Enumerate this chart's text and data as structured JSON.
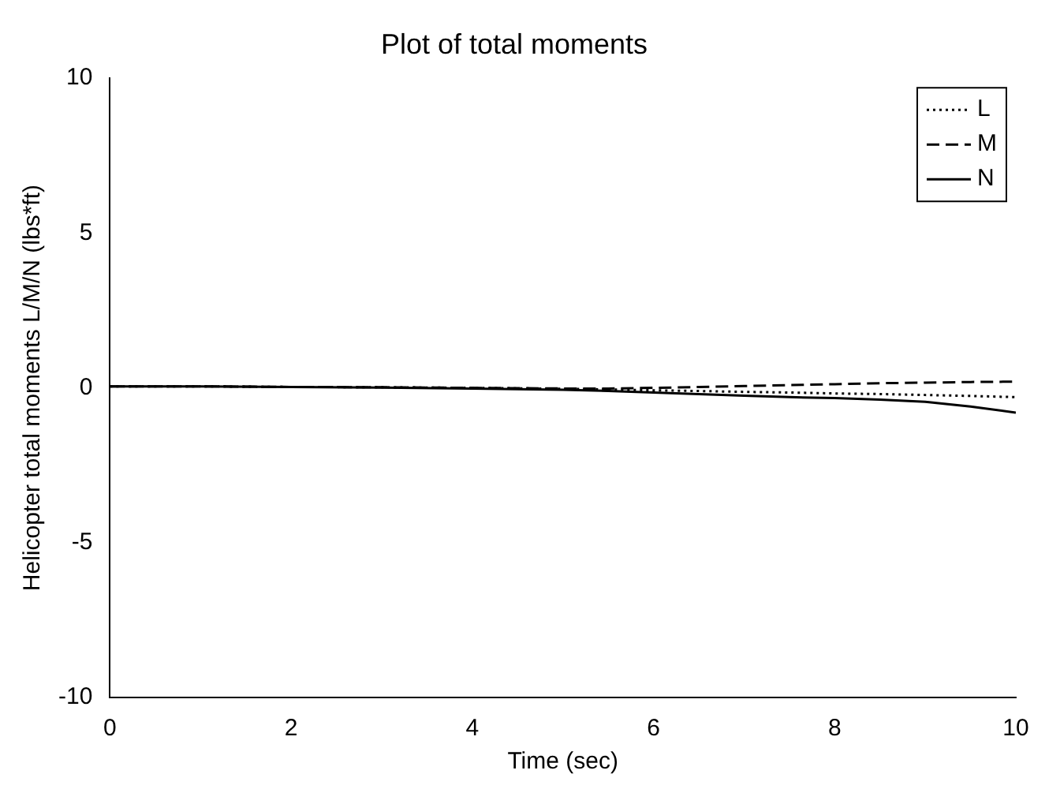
{
  "chart_data": {
    "type": "line",
    "title": "Plot of total moments",
    "xlabel": "Time (sec)",
    "ylabel": "Helicopter total moments L/M/N (lbs*ft)",
    "x": [
      0,
      1,
      2,
      3,
      4,
      5,
      5.5,
      6,
      6.5,
      7,
      7.5,
      8,
      8.5,
      9,
      9.5,
      10
    ],
    "xlim": [
      0,
      10
    ],
    "xticks": [
      0,
      2,
      4,
      6,
      8,
      10
    ],
    "ylim": [
      -10,
      10
    ],
    "yticks": [
      -10,
      -5,
      0,
      5,
      10
    ],
    "grid": false,
    "legend": "top right",
    "series": [
      {
        "name": "L",
        "color": "#000000",
        "line_style": "dotted",
        "values": [
          0.05,
          0.05,
          0.03,
          0.02,
          0,
          -0.03,
          -0.05,
          -0.08,
          -0.1,
          -0.13,
          -0.15,
          -0.18,
          -0.2,
          -0.23,
          -0.26,
          -0.3
        ]
      },
      {
        "name": "M",
        "color": "#000000",
        "line_style": "dashed",
        "values": [
          0.05,
          0.05,
          0.03,
          0.02,
          0,
          -0.02,
          -0.02,
          0,
          0.03,
          0.06,
          0.09,
          0.12,
          0.15,
          0.17,
          0.19,
          0.2
        ]
      },
      {
        "name": "N",
        "color": "#000000",
        "line_style": "solid",
        "values": [
          0.05,
          0.05,
          0.03,
          0.01,
          -0.02,
          -0.06,
          -0.1,
          -0.15,
          -0.2,
          -0.25,
          -0.3,
          -0.33,
          -0.38,
          -0.45,
          -0.6,
          -0.8
        ]
      }
    ]
  }
}
